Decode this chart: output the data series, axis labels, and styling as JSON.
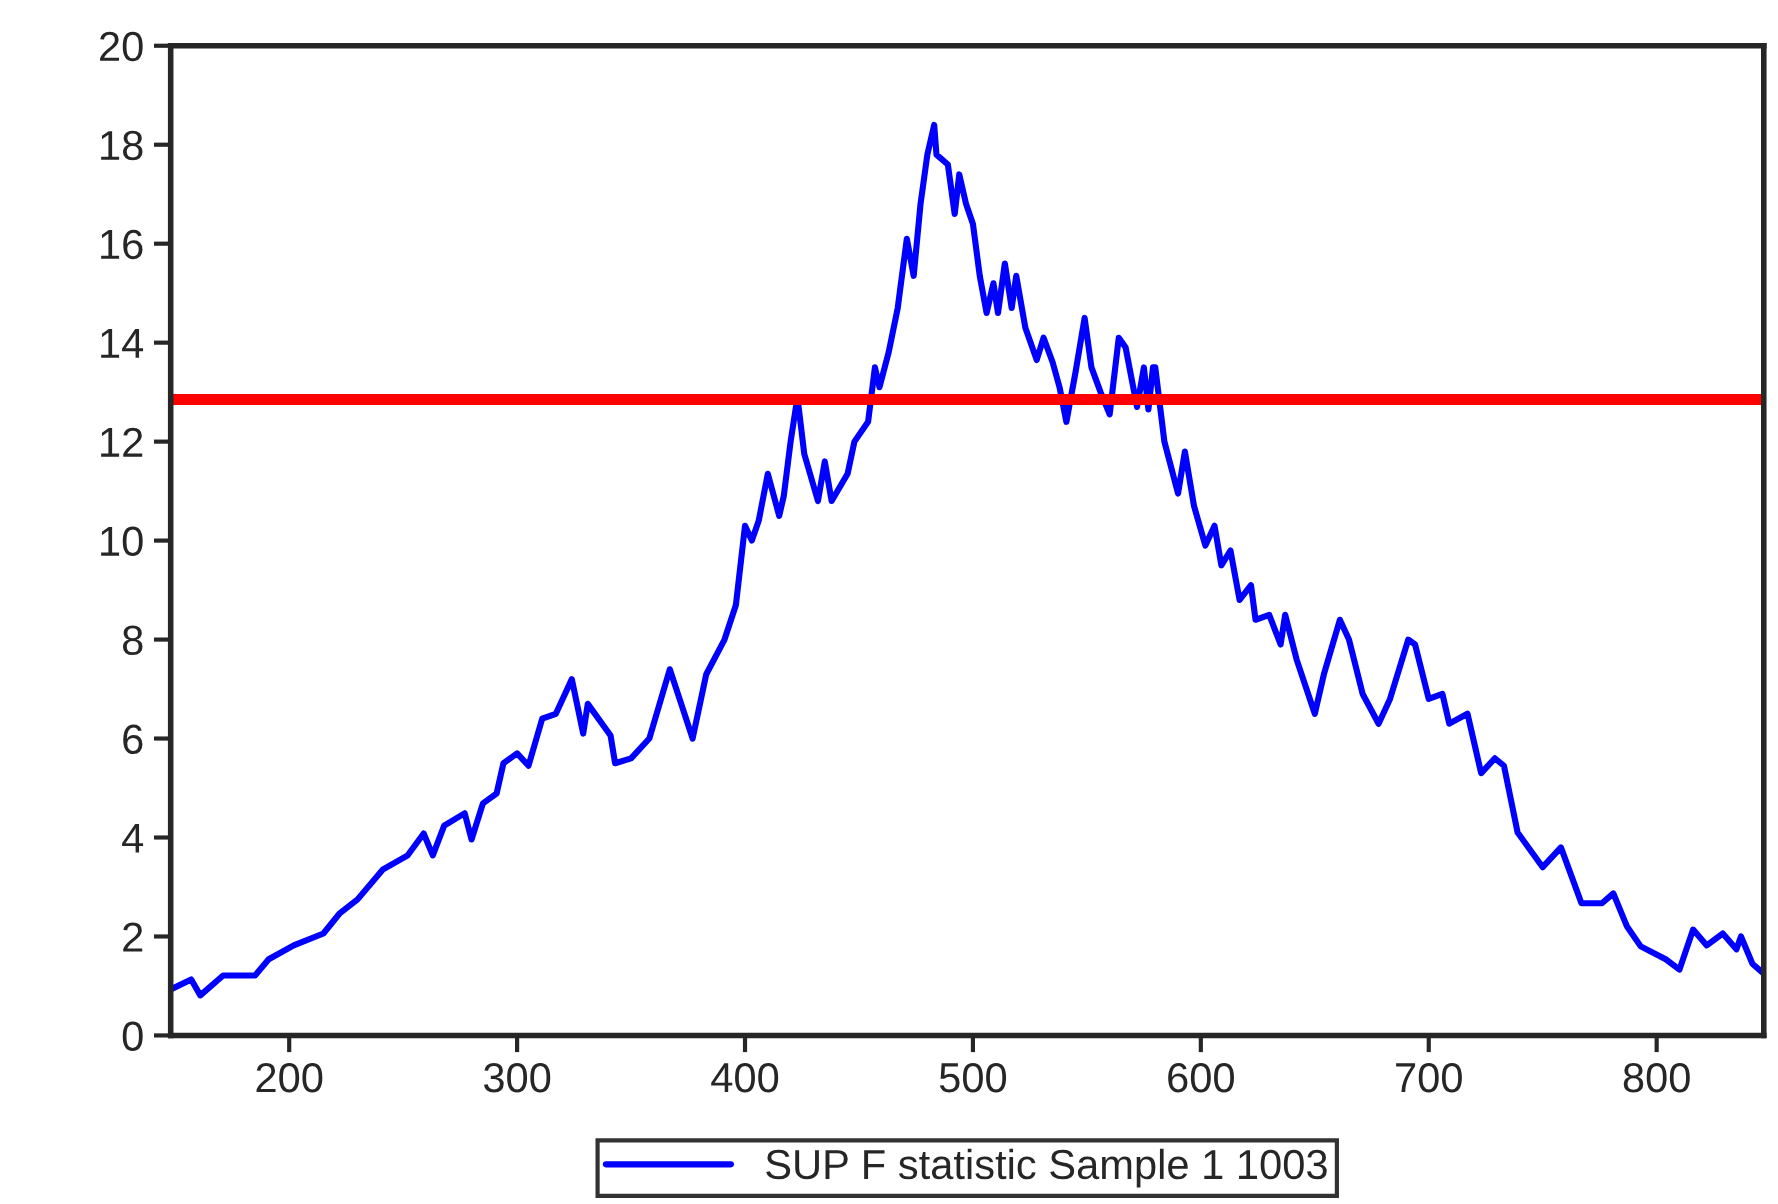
{
  "chart_data": {
    "type": "line",
    "x": [
      148,
      157,
      161,
      171,
      185,
      191,
      202,
      215,
      222,
      230,
      241,
      252,
      259,
      263,
      268,
      277,
      280,
      285,
      291,
      294,
      300,
      305,
      311,
      317,
      320,
      324,
      329,
      331,
      341,
      343,
      350,
      358,
      367,
      372,
      377,
      383,
      391,
      396,
      400,
      403,
      406,
      410,
      415,
      417,
      420,
      423,
      426,
      432,
      435,
      438,
      445,
      448,
      454,
      457,
      459,
      463,
      467,
      471,
      474,
      477,
      480,
      483,
      484,
      489,
      492,
      494,
      497,
      500,
      503,
      506,
      509,
      511,
      514,
      517,
      519,
      523,
      528,
      531,
      535,
      538,
      541,
      545,
      549,
      552,
      556,
      560,
      564,
      567,
      572,
      575,
      577,
      579,
      580,
      584,
      590,
      593,
      597,
      602,
      606,
      609,
      613,
      617,
      622,
      624,
      630,
      635,
      637,
      642,
      650,
      654,
      661,
      665,
      671,
      678,
      683,
      691,
      694,
      700,
      706,
      709,
      717,
      723,
      729,
      733,
      739,
      750,
      758,
      767,
      776,
      781,
      787,
      793,
      804,
      810,
      816,
      822,
      829,
      835,
      837,
      842,
      847
    ],
    "series": [
      {
        "name": "SUP F statistic Sample 1 1003",
        "color": "#0000ff",
        "values": [
          0.93,
          1.13,
          0.81,
          1.21,
          1.21,
          1.54,
          1.82,
          2.06,
          2.46,
          2.75,
          3.35,
          3.64,
          4.08,
          3.64,
          4.24,
          4.49,
          3.96,
          4.69,
          4.89,
          5.5,
          5.7,
          5.45,
          6.4,
          6.5,
          6.8,
          7.2,
          6.1,
          6.7,
          6.06,
          5.5,
          5.6,
          6.0,
          7.4,
          6.7,
          6.0,
          7.3,
          8.0,
          8.7,
          10.3,
          10.0,
          10.4,
          11.35,
          10.5,
          10.9,
          12.0,
          12.9,
          11.75,
          10.8,
          11.6,
          10.8,
          11.35,
          12.0,
          12.4,
          13.5,
          13.1,
          13.8,
          14.7,
          16.1,
          15.35,
          16.8,
          17.8,
          18.4,
          17.8,
          17.6,
          16.6,
          17.4,
          16.8,
          16.4,
          15.35,
          14.6,
          15.2,
          14.6,
          15.6,
          14.7,
          15.35,
          14.3,
          13.65,
          14.1,
          13.6,
          13.1,
          12.4,
          13.4,
          14.5,
          13.5,
          13.0,
          12.55,
          14.1,
          13.9,
          12.7,
          13.5,
          12.65,
          13.5,
          13.5,
          12.0,
          10.95,
          11.8,
          10.7,
          9.9,
          10.3,
          9.5,
          9.8,
          8.8,
          9.1,
          8.4,
          8.5,
          7.9,
          8.5,
          7.6,
          6.5,
          7.3,
          8.4,
          8.0,
          6.9,
          6.3,
          6.8,
          8.0,
          7.9,
          6.8,
          6.9,
          6.3,
          6.5,
          5.3,
          5.6,
          5.45,
          4.1,
          3.4,
          3.8,
          2.67,
          2.67,
          2.87,
          2.2,
          1.8,
          1.54,
          1.33,
          2.14,
          1.82,
          2.06,
          1.74,
          2.0,
          1.45,
          1.25
        ]
      }
    ],
    "ref_lines": [
      {
        "axis": "y",
        "value": 12.85,
        "color": "#ff0000"
      }
    ],
    "xlim": [
      148,
      847
    ],
    "xticks": [
      200,
      300,
      400,
      500,
      600,
      700,
      800
    ],
    "ylim": [
      0,
      20
    ],
    "yticks": [
      0,
      2,
      4,
      6,
      8,
      10,
      12,
      14,
      16,
      18,
      20
    ],
    "grid": false,
    "legend": "bottom",
    "marker": "none",
    "line_style": "solid"
  }
}
